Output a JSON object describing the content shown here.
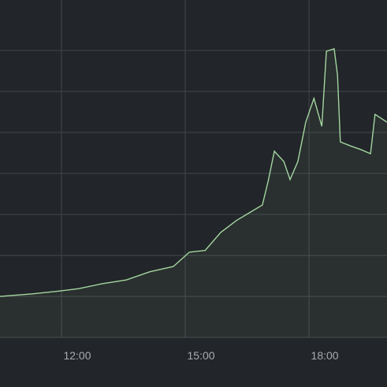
{
  "chart_data": {
    "type": "line",
    "x": [
      10.51,
      11.27,
      11.94,
      12.42,
      12.99,
      13.57,
      14.14,
      14.71,
      15.1,
      15.48,
      15.86,
      16.24,
      16.62,
      16.87,
      17.01,
      17.16,
      17.39,
      17.54,
      17.73,
      17.92,
      18.12,
      18.31,
      18.42,
      18.61,
      18.69,
      18.76,
      19.01,
      19.26,
      19.49,
      19.6,
      19.89
    ],
    "series": [
      {
        "color": "#a3d6a0",
        "values": [
          1.0,
          1.06,
          1.13,
          1.19,
          1.31,
          1.4,
          1.6,
          1.73,
          2.08,
          2.12,
          2.56,
          2.85,
          3.08,
          3.23,
          3.81,
          4.54,
          4.29,
          3.85,
          4.29,
          5.25,
          5.83,
          5.15,
          6.98,
          7.04,
          6.4,
          4.77,
          4.67,
          4.58,
          4.48,
          5.44,
          5.25
        ]
      }
    ],
    "xlim": [
      10.51,
      19.89
    ],
    "xticks": [
      {
        "value": 12,
        "label": "12:00"
      },
      {
        "value": 15,
        "label": "15:00"
      },
      {
        "value": 18,
        "label": "18:00"
      }
    ],
    "ylim": [
      -1.21,
      8.23
    ],
    "yticks": [
      0,
      1,
      2,
      3,
      4,
      5,
      6,
      7
    ],
    "grid": true
  }
}
